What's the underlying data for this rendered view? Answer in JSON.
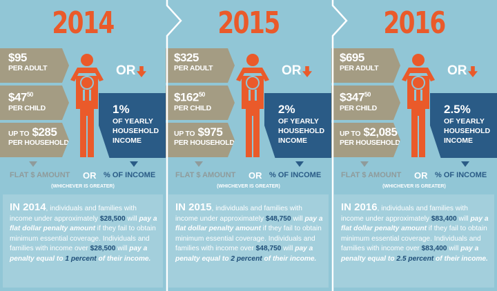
{
  "colors": {
    "background": "#91c6d6",
    "accent_orange": "#ea5a2a",
    "tan": "#a49c83",
    "navy": "#2a5b86",
    "text_highlight": "#1f4e78"
  },
  "common": {
    "or": "OR",
    "flat_label": "FLAT $ AMOUNT",
    "pct_label": "% OF INCOME",
    "whichever": "(WHICHEVER IS GREATER)",
    "per_adult": "PER ADULT",
    "per_child": "PER CHILD",
    "per_household": "PER HOUSEHOLD",
    "up_to": "UP TO",
    "income_text": "OF YEARLY HOUSEHOLD INCOME",
    "p1": ", individuals and families with income under approximately ",
    "p2": " will ",
    "p3": "pay a flat dollar penalty amount",
    "p4": " if they fail to obtain minimum essential coverage. Individuals and families with income over ",
    "p5": " will ",
    "p6": "pay a penalty equal to",
    "p7": " of their income.",
    "icon_arrow": "arrow-down-icon",
    "icon_person": "parent-with-child-icon"
  },
  "panels": [
    {
      "year": "2014",
      "adult": "$95",
      "child": "$47",
      "child_cents": "50",
      "household": "$285",
      "pct": "1%",
      "para_year": "IN 2014",
      "threshold": "$28,500",
      "percent_text": "1 percent"
    },
    {
      "year": "2015",
      "adult": "$325",
      "child": "$162",
      "child_cents": "50",
      "household": "$975",
      "pct": "2%",
      "para_year": "IN 2015",
      "threshold": "$48,750",
      "percent_text": "2 percent"
    },
    {
      "year": "2016",
      "adult": "$695",
      "child": "$347",
      "child_cents": "50",
      "household": "$2,085",
      "pct": "2.5%",
      "para_year": "IN 2016",
      "threshold": "$83,400",
      "percent_text": "2.5 percent"
    }
  ]
}
